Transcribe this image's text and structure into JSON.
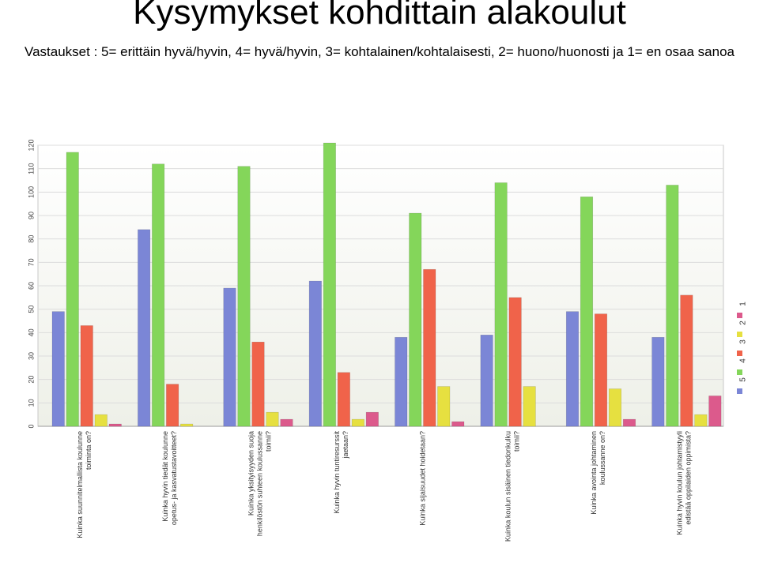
{
  "slide": {
    "title": "Kysymykset kohdittain alakoulut",
    "subtitle": "Vastaukset : 5= erittäin hyvä/hyvin, 4= hyvä/hyvin, 3= kohtalainen/kohtalaisesti, 2= huono/huonosti ja 1= en osaa sanoa"
  },
  "chart_data": {
    "type": "bar",
    "title": "",
    "xlabel": "",
    "ylabel": "",
    "ylim": [
      0,
      120
    ],
    "yticks": [
      0,
      10,
      20,
      30,
      40,
      50,
      60,
      70,
      80,
      90,
      100,
      110,
      120
    ],
    "grid": true,
    "legend_position": "right",
    "categories": [
      "Kuinka suunnitelmallista koulunne toiminta on?",
      "Kuinka hyvin tiedät koulunne opetus- ja kasvatustavoitteet?",
      "Kuinka yksityisyyden suoja henkilöstön suhteen koulussanne toimii?",
      "Kuinka hyvin tuntiresurssit jaetaan?",
      "Kuinka sijaisuudet hoidetaan?",
      "Kuinka koulun sisäinen tiedonkulku toimii?",
      "Kuinka avointa johtaminen koulussanne on?",
      "Kuinka hyvin koulun johtamistyyli edistää oppilaiden oppimista?"
    ],
    "series": [
      {
        "name": "5",
        "color": "#7b86d6",
        "values": [
          49,
          84,
          59,
          62,
          38,
          39,
          49,
          38
        ]
      },
      {
        "name": "4",
        "color": "#84d65a",
        "values": [
          117,
          112,
          111,
          121,
          91,
          104,
          98,
          103
        ]
      },
      {
        "name": "3",
        "color": "#f0634a",
        "values": [
          43,
          18,
          36,
          23,
          67,
          55,
          48,
          56
        ]
      },
      {
        "name": "2",
        "color": "#e6e040",
        "values": [
          5,
          1,
          6,
          3,
          17,
          17,
          16,
          5
        ]
      },
      {
        "name": "1",
        "color": "#dc5a8c",
        "values": [
          1,
          0,
          3,
          6,
          2,
          0,
          3,
          13
        ]
      }
    ]
  }
}
